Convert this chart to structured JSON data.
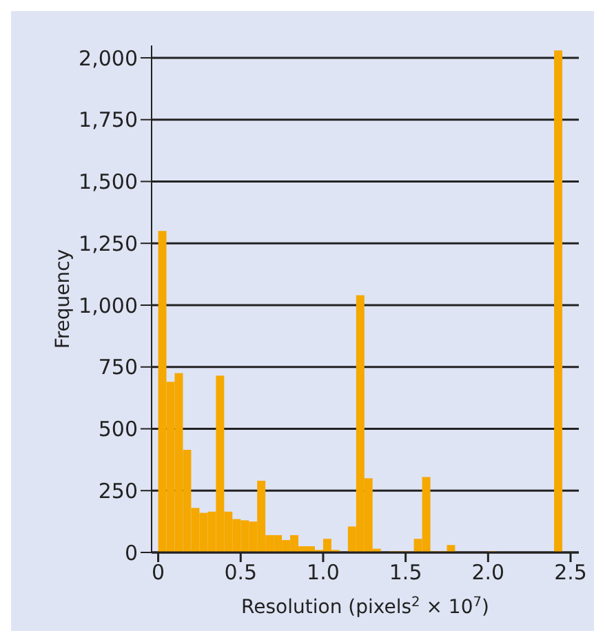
{
  "chart_data": {
    "type": "histogram",
    "xlabel": "Resolution (pixels$^{2}$ × 10$^{7}$)",
    "ylabel": "Frequency",
    "bins": [
      0,
      0.05,
      0.1,
      0.15,
      0.2,
      0.25,
      0.3,
      0.35,
      0.4,
      0.45,
      0.5,
      0.55,
      0.6,
      0.65,
      0.7,
      0.75,
      0.8,
      0.85,
      0.9,
      0.95,
      1,
      1.05,
      1.1,
      1.15,
      1.2,
      1.25,
      1.3,
      1.35,
      1.4,
      1.45,
      1.5,
      1.55,
      1.6,
      1.65,
      1.7,
      1.75,
      1.8,
      1.85,
      1.9,
      1.95,
      2,
      2.05,
      2.1,
      2.15,
      2.2,
      2.25,
      2.3,
      2.35,
      2.4,
      2.45,
      2.5
    ],
    "values": [
      1300,
      690,
      725,
      415,
      180,
      160,
      165,
      715,
      165,
      135,
      130,
      125,
      290,
      70,
      70,
      50,
      70,
      25,
      25,
      10,
      55,
      10,
      0,
      105,
      1040,
      300,
      15,
      0,
      5,
      5,
      5,
      55,
      305,
      5,
      5,
      30,
      0,
      0,
      0,
      0,
      5,
      0,
      0,
      0,
      0,
      0,
      0,
      0,
      2030,
      0
    ],
    "color": "#f5a800",
    "xlim": [
      -0.04,
      2.55
    ],
    "xticks": [
      0,
      0.5,
      {
        "value": 1,
        "label": "1.0"
      },
      1.5,
      {
        "value": 2,
        "label": "2.0"
      },
      2.5
    ],
    "ylim": [
      0,
      2050
    ],
    "yticks": [
      0,
      250,
      500,
      750,
      {
        "value": 1000,
        "label": "1,000"
      },
      {
        "value": 1250,
        "label": "1,250"
      },
      {
        "value": 1500,
        "label": "1,500"
      },
      {
        "value": 1750,
        "label": "1,750"
      },
      {
        "value": 2000,
        "label": "2,000"
      }
    ],
    "grid": "y"
  }
}
